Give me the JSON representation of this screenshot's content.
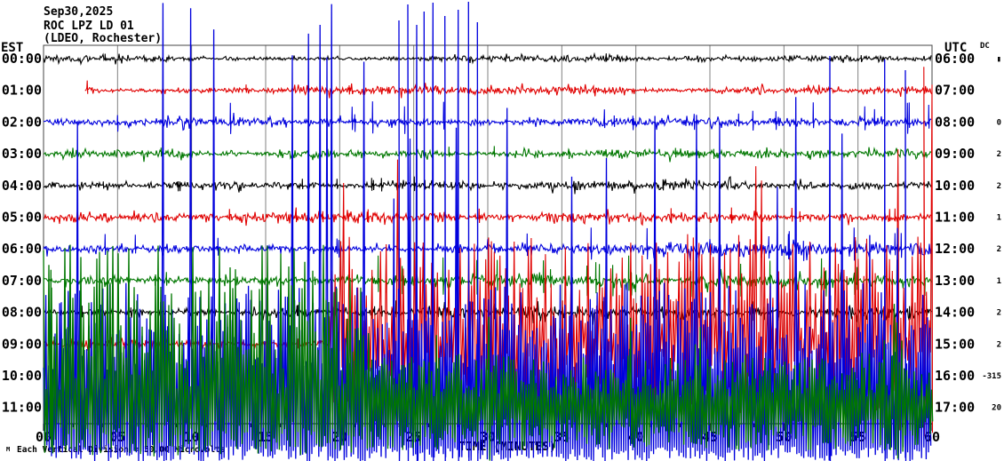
{
  "title": {
    "date": "Sep30,2025",
    "station": "ROC LPZ LD 01",
    "location": "(LDEO, Rochester)"
  },
  "left_axis": {
    "header": "EST"
  },
  "right_axis": {
    "header": "UTC",
    "dc_header": "DC"
  },
  "x_axis": {
    "label": "TIME (MINUTES)",
    "ticks": [
      "00",
      "05",
      "10",
      "15",
      "20",
      "25",
      "30",
      "35",
      "40",
      "45",
      "50",
      "55",
      "60"
    ]
  },
  "footer": {
    "caption": "Each Vertical Division =  50.00 Microvolts",
    "corner_mark": "M"
  },
  "colors": {
    "background": "#ffffff",
    "grid": "#808080",
    "frame": "#444444",
    "axis": "#000000",
    "black_trace": "#000000",
    "red_trace": "#e00000",
    "blue_trace": "#0000dd",
    "green_trace": "#007700"
  },
  "chart_data": {
    "type": "line",
    "title": "ROC LPZ LD 01 helicorder, Sep30,2025 (LDEO, Rochester)",
    "xlabel": "TIME (MINUTES)",
    "x_range": [
      0,
      60
    ],
    "minutes_per_row": 60,
    "grid": "vertical every 5 minutes",
    "seed": 20250930,
    "rows": [
      {
        "est": "00:00",
        "utc": "06:00",
        "dc": "▮",
        "color": "#000000",
        "start_min": 0,
        "segments": [
          {
            "t0": 0,
            "t1": 60,
            "mode": "noise",
            "amp": 1.7,
            "burst": 0.2,
            "spike_p": 0.004,
            "spike_u": [
              3,
              7
            ],
            "spike_d": [
              2,
              4
            ]
          }
        ],
        "events": []
      },
      {
        "est": "01:00",
        "utc": "07:00",
        "dc": "",
        "color": "#e00000",
        "start_min": 2.8,
        "segments": [
          {
            "t0": 2.8,
            "t1": 60,
            "mode": "noise",
            "amp": 2.0,
            "burst": 0.22,
            "spike_p": 0.005,
            "spike_u": [
              3,
              8
            ],
            "spike_d": [
              2,
              5
            ]
          }
        ],
        "events": [
          {
            "min": 2.95,
            "u": 11,
            "d": 4
          }
        ]
      },
      {
        "est": "02:00",
        "utc": "08:00",
        "dc": "0",
        "color": "#0000dd",
        "start_min": 0,
        "segments": [
          {
            "t0": 0,
            "t1": 60,
            "mode": "noise",
            "amp": 2.3,
            "burst": 0.22,
            "spike_p": 0.014,
            "spike_u": [
              6,
              24
            ],
            "spike_d": [
              4,
              14
            ]
          }
        ],
        "events": []
      },
      {
        "est": "03:00",
        "utc": "09:00",
        "dc": "2",
        "color": "#007700",
        "start_min": 0,
        "segments": [
          {
            "t0": 0,
            "t1": 60,
            "mode": "noise",
            "amp": 2.1,
            "burst": 0.22,
            "spike_p": 0.007,
            "spike_u": [
              4,
              9
            ],
            "spike_d": [
              3,
              6
            ]
          }
        ],
        "events": []
      },
      {
        "est": "04:00",
        "utc": "10:00",
        "dc": "2",
        "color": "#000000",
        "start_min": 0,
        "segments": [
          {
            "t0": 0,
            "t1": 60,
            "mode": "noise",
            "amp": 2.5,
            "burst": 0.26,
            "spike_p": 0.009,
            "spike_u": [
              4,
              11
            ],
            "spike_d": [
              3,
              7
            ]
          }
        ],
        "events": []
      },
      {
        "est": "05:00",
        "utc": "11:00",
        "dc": "1",
        "color": "#e00000",
        "start_min": 0,
        "segments": [
          {
            "t0": 0,
            "t1": 60,
            "mode": "noise",
            "amp": 2.5,
            "burst": 0.26,
            "spike_p": 0.009,
            "spike_u": [
              4,
              11
            ],
            "spike_d": [
              3,
              7
            ]
          }
        ],
        "events": []
      },
      {
        "est": "06:00",
        "utc": "12:00",
        "dc": "2",
        "color": "#0000dd",
        "start_min": 0,
        "segments": [
          {
            "t0": 0,
            "t1": 30,
            "mode": "noise",
            "amp": 2.9,
            "burst": 0.22,
            "spike_p": 0.016,
            "spike_u": [
              6,
              18
            ],
            "spike_d": [
              4,
              10
            ]
          },
          {
            "t0": 30,
            "t1": 60,
            "mode": "noise",
            "amp": 3.6,
            "burst": 0.3,
            "spike_p": 0.03,
            "spike_u": [
              8,
              28
            ],
            "spike_d": [
              5,
              14
            ]
          }
        ],
        "events": []
      },
      {
        "est": "07:00",
        "utc": "13:00",
        "dc": "1",
        "color": "#007700",
        "start_min": 0,
        "segments": [
          {
            "t0": 0,
            "t1": 20,
            "mode": "noise",
            "amp": 2.3,
            "burst": 0.2,
            "spike_p": 0.008,
            "spike_u": [
              4,
              10
            ],
            "spike_d": [
              3,
              6
            ]
          },
          {
            "t0": 20,
            "t1": 60,
            "mode": "noise",
            "amp": 3.6,
            "burst": 0.3,
            "spike_p": 0.04,
            "spike_u": [
              8,
              30
            ],
            "spike_d": [
              6,
              20
            ]
          }
        ],
        "events": []
      },
      {
        "est": "08:00",
        "utc": "14:00",
        "dc": "2",
        "color": "#000000",
        "start_min": 0,
        "segments": [
          {
            "t0": 0,
            "t1": 20,
            "mode": "noise",
            "amp": 2.4,
            "burst": 0.2,
            "spike_p": 0.007,
            "spike_u": [
              4,
              9
            ],
            "spike_d": [
              3,
              6
            ]
          },
          {
            "t0": 20,
            "t1": 60,
            "mode": "noise",
            "amp": 3.1,
            "burst": 0.3,
            "spike_p": 0.022,
            "spike_u": [
              5,
              15
            ],
            "spike_d": [
              4,
              10
            ]
          }
        ],
        "events": []
      },
      {
        "est": "09:00",
        "utc": "15:00",
        "dc": "2",
        "color": "#e00000",
        "start_min": 0,
        "segments": [
          {
            "t0": 0,
            "t1": 19.3,
            "mode": "noise",
            "amp": 2.5,
            "burst": 0.2,
            "spike_p": 0.006,
            "spike_u": [
              4,
              8
            ],
            "spike_d": [
              3,
              6
            ]
          },
          {
            "t0": 19.3,
            "t1": 60,
            "mode": "comb",
            "step": 3.2,
            "u": [
              5,
              125
            ],
            "d": [
              4,
              80
            ],
            "giant_p": 0.04,
            "giant_u": [
              130,
              235
            ],
            "giant_d": [
              60,
              100
            ]
          }
        ],
        "events": [
          {
            "min": 20.3,
            "u": 60,
            "d": 45
          },
          {
            "min": 59.45,
            "u": 312,
            "d": 104
          },
          {
            "min": 60,
            "u": 292,
            "d": 100
          }
        ]
      },
      {
        "est": "10:00",
        "utc": "16:00",
        "dc": "-315",
        "color": "#0000dd",
        "start_min": 0,
        "segments": [
          {
            "t0": 0,
            "t1": 1.2,
            "mode": "comb",
            "step": 2.6,
            "u": [
              5,
              100
            ],
            "d": [
              78,
              97
            ],
            "giant_p": 0.05,
            "giant_u": [
              140,
              260
            ],
            "giant_d": [
              80,
              98
            ]
          },
          {
            "t0": 1.2,
            "t1": 23.5,
            "mode": "comb",
            "step": 2.6,
            "u": [
              5,
              105
            ],
            "d": [
              78,
              97
            ],
            "giant_p": 0.085,
            "giant_u": [
              250,
              423
            ],
            "giant_d": [
              80,
              98
            ]
          },
          {
            "t0": 23.5,
            "t1": 60,
            "mode": "comb",
            "step": 2.6,
            "u": [
              5,
              105
            ],
            "d": [
              78,
              97
            ],
            "giant_p": 0.07,
            "giant_u": [
              130,
              340
            ],
            "giant_d": [
              80,
              98
            ]
          }
        ],
        "events": [
          {
            "min": 24.0,
            "u": 400,
            "d": 96
          },
          {
            "min": 24.6,
            "u": 418,
            "d": 96
          },
          {
            "min": 25.2,
            "u": 395,
            "d": 96
          },
          {
            "min": 25.7,
            "u": 410,
            "d": 96
          },
          {
            "min": 26.3,
            "u": 420,
            "d": 96
          },
          {
            "min": 27.1,
            "u": 405,
            "d": 96
          },
          {
            "min": 28.0,
            "u": 412,
            "d": 96
          },
          {
            "min": 28.7,
            "u": 421,
            "d": 96
          },
          {
            "min": 29.3,
            "u": 398,
            "d": 96
          },
          {
            "min": 53.1,
            "u": 360,
            "d": 96
          },
          {
            "min": 56.8,
            "u": 356,
            "d": 96
          },
          {
            "min": 58.2,
            "u": 344,
            "d": 96
          }
        ]
      },
      {
        "est": "11:00",
        "utc": "17:00",
        "dc": "20",
        "color": "#007700",
        "start_min": 0,
        "segments": [
          {
            "t0": 0,
            "t1": 22,
            "mode": "comb",
            "step": 3.0,
            "u": [
              15,
              185
            ],
            "d": [
              15,
              55
            ],
            "giant_p": 0,
            "giant_u": [
              0,
              0
            ],
            "giant_d": [
              0,
              0
            ]
          },
          {
            "t0": 22,
            "t1": 60,
            "mode": "comb",
            "step": 2.8,
            "u": [
              12,
              62
            ],
            "d": [
              12,
              48
            ],
            "giant_p": 0.02,
            "giant_u": [
              70,
              120
            ],
            "giant_d": [
              40,
              60
            ]
          }
        ],
        "events": [
          {
            "min": 0.5,
            "u": 155,
            "d": 45
          }
        ]
      }
    ]
  }
}
